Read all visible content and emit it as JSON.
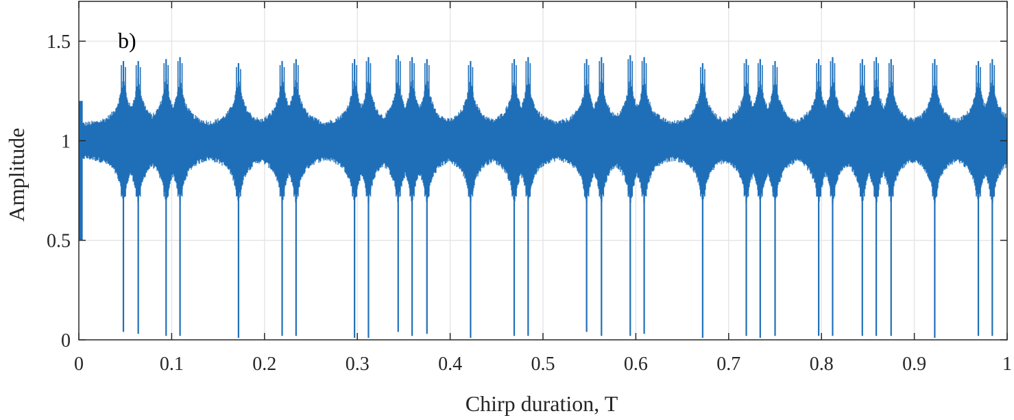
{
  "chart_data": {
    "type": "line",
    "panel_label": "b)",
    "xlabel": "Chirp duration, T",
    "ylabel": "Amplitude",
    "xlim": [
      0,
      1
    ],
    "ylim": [
      0,
      1.7
    ],
    "grid": true,
    "line_color": "#1f6fb8",
    "x_ticks": [
      0,
      0.1,
      0.2,
      0.3,
      0.4,
      0.5,
      0.6,
      0.7,
      0.8,
      0.9,
      1
    ],
    "x_tick_labels": [
      "0",
      "0.1",
      "0.2",
      "0.3",
      "0.4",
      "0.5",
      "0.6",
      "0.7",
      "0.8",
      "0.9",
      "1"
    ],
    "y_ticks": [
      0,
      0.5,
      1,
      1.5
    ],
    "y_tick_labels": [
      "0",
      "0.5",
      "1",
      "1.5"
    ],
    "series": [
      {
        "baseline": 1.0,
        "envelope_upper": 1.1,
        "envelope_lower": 0.9,
        "dips": [
          {
            "x": 0.048,
            "min": 0.04,
            "max": 1.4
          },
          {
            "x": 0.064,
            "min": 0.03,
            "max": 1.4
          },
          {
            "x": 0.094,
            "min": 0.02,
            "max": 1.41
          },
          {
            "x": 0.109,
            "min": 0.02,
            "max": 1.42
          },
          {
            "x": 0.172,
            "min": 0.01,
            "max": 1.39
          },
          {
            "x": 0.219,
            "min": 0.02,
            "max": 1.4
          },
          {
            "x": 0.234,
            "min": 0.02,
            "max": 1.41
          },
          {
            "x": 0.297,
            "min": 0.01,
            "max": 1.41
          },
          {
            "x": 0.312,
            "min": 0.01,
            "max": 1.42
          },
          {
            "x": 0.344,
            "min": 0.04,
            "max": 1.43
          },
          {
            "x": 0.359,
            "min": 0.02,
            "max": 1.42
          },
          {
            "x": 0.375,
            "min": 0.03,
            "max": 1.41
          },
          {
            "x": 0.422,
            "min": 0.01,
            "max": 1.4
          },
          {
            "x": 0.469,
            "min": 0.02,
            "max": 1.41
          },
          {
            "x": 0.484,
            "min": 0.02,
            "max": 1.42
          },
          {
            "x": 0.547,
            "min": 0.04,
            "max": 1.41
          },
          {
            "x": 0.563,
            "min": 0.02,
            "max": 1.42
          },
          {
            "x": 0.594,
            "min": 0.02,
            "max": 1.43
          },
          {
            "x": 0.609,
            "min": 0.03,
            "max": 1.42
          },
          {
            "x": 0.672,
            "min": 0.01,
            "max": 1.39
          },
          {
            "x": 0.719,
            "min": 0.02,
            "max": 1.41
          },
          {
            "x": 0.734,
            "min": 0.01,
            "max": 1.41
          },
          {
            "x": 0.75,
            "min": 0.02,
            "max": 1.4
          },
          {
            "x": 0.797,
            "min": 0.02,
            "max": 1.41
          },
          {
            "x": 0.812,
            "min": 0.02,
            "max": 1.42
          },
          {
            "x": 0.844,
            "min": 0.02,
            "max": 1.41
          },
          {
            "x": 0.859,
            "min": 0.02,
            "max": 1.42
          },
          {
            "x": 0.875,
            "min": 0.02,
            "max": 1.41
          },
          {
            "x": 0.922,
            "min": 0.01,
            "max": 1.41
          },
          {
            "x": 0.969,
            "min": 0.02,
            "max": 1.4
          },
          {
            "x": 0.984,
            "min": 0.02,
            "max": 1.41
          }
        ]
      }
    ]
  }
}
